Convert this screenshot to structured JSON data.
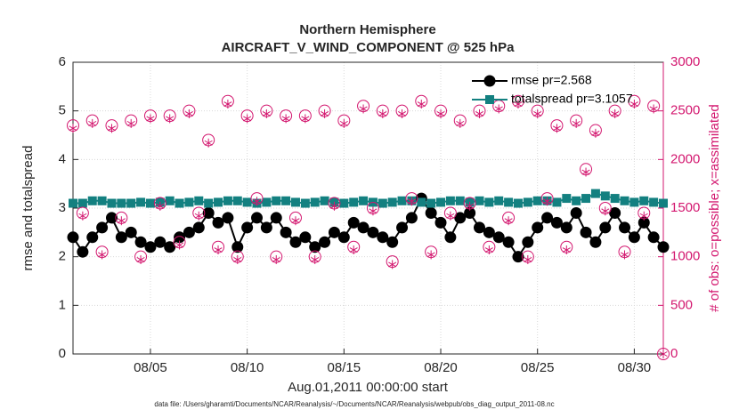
{
  "chart_data": {
    "type": "line",
    "title": "Northern Hemisphere",
    "subtitle": "AIRCRAFT_V_WIND_COMPONENT @ 525 hPa",
    "xlabel": "Aug.01,2011 00:00:00 start",
    "ylabel": "rmse and totalspread",
    "y2label": "# of obs: o=possible; x=assimilated",
    "footnote": "data file: /Users/gharamti/Documents/NCAR/Reanalysis/~/Documents/NCAR/Reanalysis/webpub/obs_diag_output_2011-08.nc",
    "x": [
      1,
      1.5,
      2,
      2.5,
      3,
      3.5,
      4,
      4.5,
      5,
      5.5,
      6,
      6.5,
      7,
      7.5,
      8,
      8.5,
      9,
      9.5,
      10,
      10.5,
      11,
      11.5,
      12,
      12.5,
      13,
      13.5,
      14,
      14.5,
      15,
      15.5,
      16,
      16.5,
      17,
      17.5,
      18,
      18.5,
      19,
      19.5,
      20,
      20.5,
      21,
      21.5,
      22,
      22.5,
      23,
      23.5,
      24,
      24.5,
      25,
      25.5,
      26,
      26.5,
      27,
      27.5,
      28,
      28.5,
      29,
      29.5,
      30,
      30.5,
      31,
      31.5
    ],
    "xlim": [
      1,
      31.5
    ],
    "xticks": [
      {
        "value": 5,
        "label": "08/05"
      },
      {
        "value": 10,
        "label": "08/10"
      },
      {
        "value": 15,
        "label": "08/15"
      },
      {
        "value": 20,
        "label": "08/20"
      },
      {
        "value": 25,
        "label": "08/25"
      },
      {
        "value": 30,
        "label": "08/30"
      }
    ],
    "ylim": [
      0,
      6
    ],
    "yticks": [
      0,
      1,
      2,
      3,
      4,
      5,
      6
    ],
    "y2lim": [
      0,
      3000
    ],
    "y2ticks": [
      0,
      500,
      1000,
      1500,
      2000,
      2500,
      3000
    ],
    "grid": true,
    "legend": "top-right",
    "series": [
      {
        "name": "rmse pr=2.568",
        "color": "#000000",
        "marker": "circle",
        "line": true,
        "values": [
          2.4,
          2.1,
          2.4,
          2.6,
          2.8,
          2.4,
          2.5,
          2.3,
          2.2,
          2.3,
          2.2,
          2.4,
          2.5,
          2.6,
          2.9,
          2.7,
          2.8,
          2.2,
          2.6,
          2.8,
          2.6,
          2.8,
          2.5,
          2.3,
          2.4,
          2.2,
          2.3,
          2.5,
          2.4,
          2.7,
          2.6,
          2.5,
          2.4,
          2.3,
          2.6,
          2.8,
          3.2,
          2.9,
          2.7,
          2.4,
          2.8,
          2.9,
          2.6,
          2.5,
          2.4,
          2.3,
          2.0,
          2.3,
          2.6,
          2.8,
          2.7,
          2.6,
          2.9,
          2.5,
          2.3,
          2.6,
          2.9,
          2.6,
          2.4,
          2.7,
          2.4,
          2.2
        ]
      },
      {
        "name": "totalspread pr=3.1057",
        "color": "#138080",
        "marker": "square",
        "line": true,
        "values": [
          3.1,
          3.1,
          3.15,
          3.15,
          3.1,
          3.1,
          3.1,
          3.12,
          3.1,
          3.12,
          3.15,
          3.1,
          3.12,
          3.15,
          3.1,
          3.12,
          3.15,
          3.15,
          3.12,
          3.1,
          3.12,
          3.15,
          3.15,
          3.12,
          3.1,
          3.12,
          3.15,
          3.12,
          3.1,
          3.12,
          3.15,
          3.12,
          3.1,
          3.12,
          3.15,
          3.15,
          3.12,
          3.1,
          3.12,
          3.15,
          3.15,
          3.12,
          3.15,
          3.12,
          3.15,
          3.12,
          3.1,
          3.12,
          3.15,
          3.15,
          3.12,
          3.2,
          3.15,
          3.2,
          3.3,
          3.25,
          3.2,
          3.15,
          3.12,
          3.15,
          3.12,
          3.1
        ]
      },
      {
        "color": "#d3176f",
        "marker": "open-circle",
        "line": false,
        "axis": "y2",
        "values": [
          2350,
          1450,
          2400,
          1050,
          2350,
          1400,
          2400,
          1000,
          2450,
          1550,
          2450,
          1150,
          2500,
          1450,
          2200,
          1100,
          2600,
          1000,
          2450,
          1600,
          2500,
          1000,
          2450,
          1400,
          2450,
          1000,
          2500,
          1550,
          2400,
          1100,
          2550,
          1500,
          2500,
          950,
          2500,
          1600,
          2600,
          1050,
          2500,
          1450,
          2400,
          1550,
          2500,
          1100,
          2550,
          1400,
          2600,
          1000,
          2500,
          1600,
          2350,
          1100,
          2400,
          1900,
          2300,
          1500,
          2500,
          1050,
          2600,
          1450,
          2550,
          0
        ]
      },
      {
        "color": "#d3176f",
        "marker": "asterisk",
        "line": false,
        "axis": "y2",
        "values": [
          2320,
          1420,
          2370,
          1020,
          2320,
          1370,
          2370,
          970,
          2420,
          1520,
          2420,
          1120,
          2470,
          1420,
          2170,
          1070,
          2570,
          970,
          2420,
          1570,
          2470,
          970,
          2420,
          1370,
          2420,
          970,
          2470,
          1520,
          2370,
          1070,
          2520,
          1470,
          2470,
          920,
          2470,
          1570,
          2570,
          1020,
          2470,
          1420,
          2370,
          1520,
          2470,
          1070,
          2520,
          1370,
          2570,
          970,
          2470,
          1570,
          2320,
          1070,
          2370,
          1870,
          2270,
          1470,
          2470,
          1020,
          2570,
          1420,
          2520,
          0
        ]
      }
    ]
  }
}
